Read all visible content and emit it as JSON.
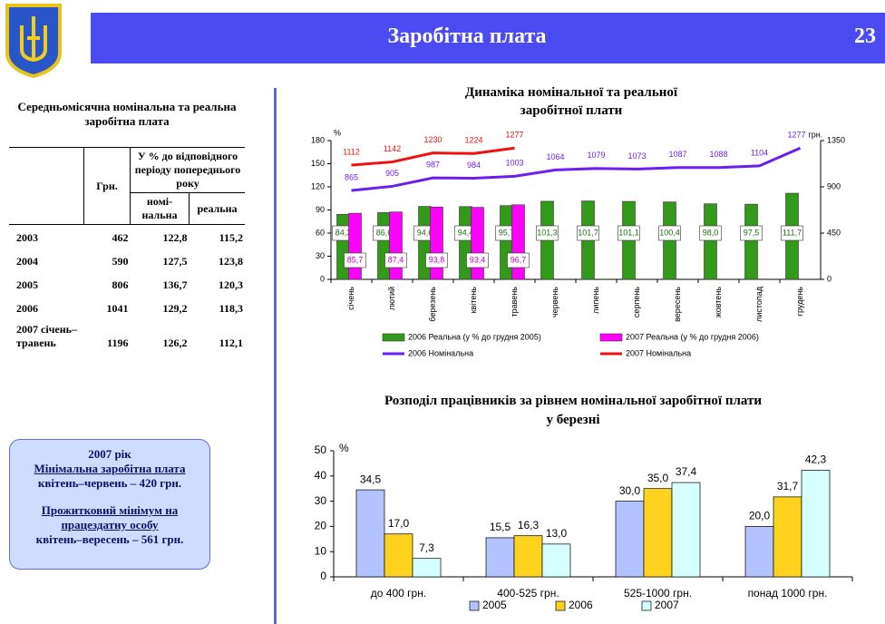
{
  "header": {
    "title": "Заробітна плата",
    "page": "23"
  },
  "table": {
    "title": "Середньомісячна номінальна та реальна заробітна плата",
    "columns": [
      "Грн.",
      "У % до відповідного періоду попереднього року"
    ],
    "subcolumns": [
      "номі-нальна",
      "реальна"
    ],
    "rows": [
      [
        "2003",
        "462",
        "122,8",
        "115,2"
      ],
      [
        "2004",
        "590",
        "127,5",
        "123,8"
      ],
      [
        "2005",
        "806",
        "136,7",
        "120,3"
      ],
      [
        "2006",
        "1041",
        "129,2",
        "118,3"
      ],
      [
        "2007 січень–травень",
        "1196",
        "126,2",
        "112,1"
      ]
    ]
  },
  "note": {
    "lines": [
      "2007 рік",
      "Мінімальна заробітна плата",
      "квітень–червень – 420 грн.",
      "Прожитковий мінімум на працездатну особу",
      "квітень–вересень – 561 грн."
    ],
    "underlined": [
      false,
      true,
      false,
      true,
      false
    ]
  },
  "chart_data": [
    {
      "type": "bar_line",
      "title": "Динаміка номінальної та реальної заробітної плати",
      "ylabel": "%",
      "y2label": "грн.",
      "categories": [
        "січень",
        "лютий",
        "березень",
        "квітень",
        "травень",
        "червень",
        "липень",
        "серпень",
        "вересень",
        "жовтень",
        "листопад",
        "грудень"
      ],
      "ylim": [
        0,
        180
      ],
      "yticks": [
        0,
        30,
        60,
        90,
        120,
        150,
        180
      ],
      "y2lim": [
        0,
        1350
      ],
      "y2ticks": [
        0,
        450,
        900,
        1350
      ],
      "series": [
        {
          "name": "2006 Реальна (у % до грудня 2005)",
          "type": "bar",
          "color": "#339919",
          "values": [
            84.3,
            86.6,
            94.6,
            94.4,
            95.7,
            101.3,
            101.7,
            101.1,
            100.4,
            98.0,
            97.5,
            111.7
          ],
          "value_labels": [
            "84,3",
            "86,6",
            "94,6",
            "94,4",
            "95,7",
            "101,3",
            "101,7",
            "101,1",
            "100,4",
            "98,0",
            "97,5",
            "111,7"
          ]
        },
        {
          "name": "2007 Реальна (у % до грудня 2006)",
          "type": "bar",
          "color": "#ff00ff",
          "values": [
            85.7,
            87.4,
            93.8,
            93.4,
            96.7,
            null,
            null,
            null,
            null,
            null,
            null,
            null
          ],
          "value_labels": [
            "85,7",
            "87,4",
            "93,8",
            "93,4",
            "96,7",
            null,
            null,
            null,
            null,
            null,
            null,
            null
          ]
        },
        {
          "name": "2006 Номінальна",
          "type": "line",
          "axis": "y2",
          "color": "#6a1ff0",
          "values": [
            865,
            905,
            987,
            984,
            1003,
            1064,
            1079,
            1073,
            1087,
            1088,
            1104,
            1277
          ]
        },
        {
          "name": "2007 Номінальна",
          "type": "line",
          "axis": "y2",
          "color": "#ee1111",
          "values": [
            1112,
            1142,
            1230,
            1224,
            1277,
            null,
            null,
            null,
            null,
            null,
            null,
            null
          ]
        }
      ]
    },
    {
      "type": "bar",
      "title": "Розподіл працівників за рівнем номінальної заробітної плати у березні",
      "ylabel": "%",
      "categories": [
        "до 400 грн.",
        "400-525 грн.",
        "525-1000 грн.",
        "понад 1000 грн."
      ],
      "ylim": [
        0,
        50
      ],
      "yticks": [
        0,
        10,
        20,
        30,
        40,
        50
      ],
      "series": [
        {
          "name": "2005",
          "color": "#b3c3ff",
          "values": [
            34.5,
            15.5,
            30.0,
            20.0
          ],
          "value_labels": [
            "34,5",
            "15,5",
            "30,0",
            "20,0"
          ]
        },
        {
          "name": "2006",
          "color": "#ffd21e",
          "values": [
            17.0,
            16.3,
            35.0,
            31.7
          ],
          "value_labels": [
            "17,0",
            "16,3",
            "35,0",
            "31,7"
          ]
        },
        {
          "name": "2007",
          "color": "#d6ffff",
          "values": [
            7.3,
            13.0,
            37.4,
            42.3
          ],
          "value_labels": [
            "7,3",
            "13,0",
            "37,4",
            "42,3"
          ]
        }
      ]
    }
  ]
}
